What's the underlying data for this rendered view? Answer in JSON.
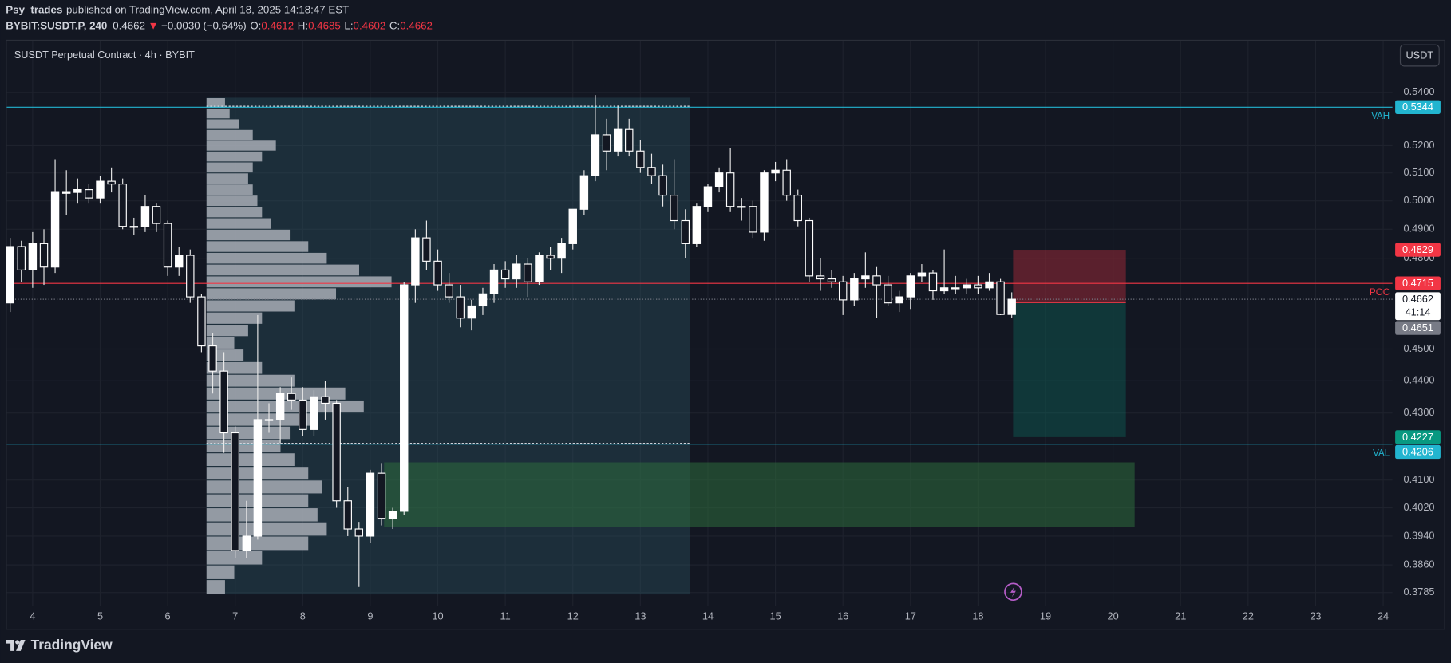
{
  "header": {
    "author": "Psy_trades",
    "published": "published on TradingView.com, April 18, 2025 14:18:47 EST",
    "symbol": "BYBIT:SUSDT.P, 240",
    "price": "0.4662",
    "arrow": "▼",
    "change": "−0.0030 (−0.64%)",
    "ohlc": [
      {
        "label": "O:",
        "value": "0.4612"
      },
      {
        "label": "H:",
        "value": "0.4685"
      },
      {
        "label": "L:",
        "value": "0.4602"
      },
      {
        "label": "C:",
        "value": "0.4662"
      }
    ],
    "pane_title": "SUSDT Perpetual Contract · 4h · BYBIT",
    "currency": "USDT",
    "footer": "TradingView"
  },
  "chart_data": {
    "type": "candlestick",
    "log_scale": true,
    "grid": true,
    "up_color": "#ffffff",
    "down_color": "#131722",
    "wick_color": "#e8e8e8",
    "xlim": [
      3.603,
      24.137
    ],
    "xticks": [
      4,
      5,
      6,
      7,
      8,
      9,
      10,
      11,
      12,
      13,
      14,
      15,
      16,
      17,
      18,
      19,
      20,
      21,
      22,
      23,
      24
    ],
    "ylim": [
      0.375,
      0.5606
    ],
    "yticks": [
      {
        "value": 0.54,
        "label": "0.5400"
      },
      {
        "value": 0.52,
        "label": "0.5200"
      },
      {
        "value": 0.51,
        "label": "0.5100"
      },
      {
        "value": 0.5,
        "label": "0.5000"
      },
      {
        "value": 0.49,
        "label": "0.4900"
      },
      {
        "value": 0.48,
        "label": "0.4800"
      },
      {
        "value": 0.45,
        "label": "0.4500"
      },
      {
        "value": 0.44,
        "label": "0.4400"
      },
      {
        "value": 0.43,
        "label": "0.4300"
      },
      {
        "value": 0.41,
        "label": "0.4100"
      },
      {
        "value": 0.402,
        "label": "0.4020"
      },
      {
        "value": 0.394,
        "label": "0.3940"
      },
      {
        "value": 0.386,
        "label": "0.3860"
      },
      0.3785
    ],
    "x": [
      3.667,
      3.833,
      4,
      4.167,
      4.333,
      4.5,
      4.667,
      4.833,
      5,
      5.167,
      5.333,
      5.5,
      5.667,
      5.833,
      6,
      6.167,
      6.333,
      6.5,
      6.667,
      6.833,
      7,
      7.167,
      7.333,
      7.5,
      7.667,
      7.833,
      8,
      8.167,
      8.333,
      8.5,
      8.667,
      8.833,
      9,
      9.167,
      9.333,
      9.5,
      9.667,
      9.833,
      10,
      10.167,
      10.333,
      10.5,
      10.667,
      10.833,
      11,
      11.167,
      11.333,
      11.5,
      11.667,
      11.833,
      12,
      12.167,
      12.333,
      12.5,
      12.667,
      12.833,
      13,
      13.167,
      13.333,
      13.5,
      13.667,
      13.833,
      14,
      14.167,
      14.333,
      14.5,
      14.667,
      14.833,
      15,
      15.167,
      15.333,
      15.5,
      15.667,
      15.833,
      16,
      16.167,
      16.333,
      16.5,
      16.667,
      16.833,
      17,
      17.167,
      17.333,
      17.5,
      17.667,
      17.833,
      18,
      18.167,
      18.333,
      18.5
    ],
    "open": [
      0.465,
      0.484,
      0.476,
      0.485,
      0.477,
      0.503,
      0.503,
      0.504,
      0.501,
      0.507,
      0.506,
      0.491,
      0.491,
      0.498,
      0.492,
      0.477,
      0.481,
      0.467,
      0.451,
      0.443,
      0.424,
      0.39,
      0.394,
      0.428,
      0.428,
      0.436,
      0.434,
      0.425,
      0.435,
      0.433,
      0.404,
      0.396,
      0.394,
      0.412,
      0.399,
      0.401,
      0.471,
      0.487,
      0.479,
      0.471,
      0.467,
      0.46,
      0.464,
      0.468,
      0.476,
      0.473,
      0.478,
      0.472,
      0.481,
      0.48,
      0.485,
      0.497,
      0.509,
      0.524,
      0.518,
      0.526,
      0.518,
      0.512,
      0.509,
      0.502,
      0.493,
      0.485,
      0.498,
      0.505,
      0.51,
      0.498,
      0.498,
      0.489,
      0.51,
      0.511,
      0.502,
      0.493,
      0.474,
      0.473,
      0.472,
      0.466,
      0.473,
      0.474,
      0.471,
      0.465,
      0.467,
      0.474,
      0.475,
      0.469,
      0.47,
      0.47,
      0.471,
      0.47,
      0.472,
      0.4612
    ],
    "high": [
      0.487,
      0.486,
      0.489,
      0.49,
      0.515,
      0.511,
      0.508,
      0.506,
      0.509,
      0.512,
      0.508,
      0.494,
      0.502,
      0.499,
      0.493,
      0.484,
      0.483,
      0.468,
      0.455,
      0.449,
      0.426,
      0.404,
      0.461,
      0.433,
      0.438,
      0.441,
      0.438,
      0.437,
      0.44,
      0.434,
      0.408,
      0.398,
      0.413,
      0.415,
      0.402,
      0.472,
      0.49,
      0.493,
      0.483,
      0.475,
      0.471,
      0.466,
      0.47,
      0.478,
      0.479,
      0.481,
      0.48,
      0.482,
      0.484,
      0.487,
      0.497,
      0.511,
      0.539,
      0.53,
      0.535,
      0.53,
      0.522,
      0.517,
      0.513,
      0.515,
      0.497,
      0.499,
      0.506,
      0.512,
      0.519,
      0.501,
      0.5,
      0.511,
      0.514,
      0.515,
      0.504,
      0.494,
      0.48,
      0.476,
      0.474,
      0.475,
      0.482,
      0.477,
      0.474,
      0.469,
      0.475,
      0.478,
      0.476,
      0.483,
      0.474,
      0.473,
      0.474,
      0.475,
      0.473,
      0.4685
    ],
    "low": [
      0.462,
      0.472,
      0.47,
      0.471,
      0.475,
      0.495,
      0.499,
      0.499,
      0.499,
      0.503,
      0.49,
      0.488,
      0.489,
      0.489,
      0.474,
      0.474,
      0.465,
      0.449,
      0.436,
      0.418,
      0.388,
      0.388,
      0.393,
      0.424,
      0.421,
      0.431,
      0.423,
      0.423,
      0.428,
      0.402,
      0.394,
      0.38,
      0.392,
      0.397,
      0.396,
      0.4,
      0.465,
      0.476,
      0.469,
      0.465,
      0.457,
      0.456,
      0.461,
      0.465,
      0.47,
      0.47,
      0.467,
      0.471,
      0.476,
      0.475,
      0.483,
      0.495,
      0.507,
      0.511,
      0.516,
      0.516,
      0.51,
      0.506,
      0.498,
      0.49,
      0.48,
      0.484,
      0.496,
      0.503,
      0.496,
      0.493,
      0.487,
      0.486,
      0.507,
      0.5,
      0.491,
      0.472,
      0.469,
      0.47,
      0.461,
      0.464,
      0.47,
      0.46,
      0.464,
      0.462,
      0.463,
      0.472,
      0.466,
      0.468,
      0.468,
      0.468,
      0.468,
      0.469,
      0.461,
      0.4602
    ],
    "close": [
      0.484,
      0.476,
      0.485,
      0.477,
      0.503,
      0.503,
      0.504,
      0.501,
      0.507,
      0.506,
      0.491,
      0.491,
      0.498,
      0.492,
      0.477,
      0.481,
      0.467,
      0.451,
      0.443,
      0.424,
      0.39,
      0.394,
      0.428,
      0.428,
      0.436,
      0.434,
      0.425,
      0.435,
      0.433,
      0.404,
      0.396,
      0.394,
      0.412,
      0.399,
      0.401,
      0.471,
      0.487,
      0.479,
      0.471,
      0.467,
      0.46,
      0.464,
      0.468,
      0.476,
      0.473,
      0.478,
      0.472,
      0.481,
      0.48,
      0.485,
      0.497,
      0.509,
      0.524,
      0.518,
      0.526,
      0.518,
      0.512,
      0.509,
      0.502,
      0.493,
      0.485,
      0.498,
      0.505,
      0.51,
      0.498,
      0.498,
      0.489,
      0.51,
      0.511,
      0.502,
      0.493,
      0.474,
      0.473,
      0.472,
      0.466,
      0.473,
      0.474,
      0.471,
      0.465,
      0.467,
      0.474,
      0.475,
      0.469,
      0.47,
      0.47,
      0.471,
      0.47,
      0.472,
      0.4612,
      0.4662
    ],
    "countdown": "41:14",
    "levels": [
      {
        "name": "VAH",
        "value": 0.5344,
        "color": "#22b5d0"
      },
      {
        "name": "POC",
        "value": 0.4715,
        "color": "#f23645"
      },
      {
        "name": "VAL",
        "value": 0.4206,
        "color": "#22b5d0"
      }
    ],
    "volume_profile": {
      "x": 6.575,
      "box_x": [
        6.575,
        13.73
      ],
      "color": "#b2b5be",
      "box_color": "#2f5a66",
      "bins": [
        0.378,
        0.382,
        0.386,
        0.39,
        0.394,
        0.398,
        0.402,
        0.406,
        0.41,
        0.414,
        0.418,
        0.422,
        0.426,
        0.43,
        0.434,
        0.438,
        0.442,
        0.446,
        0.45,
        0.454,
        0.458,
        0.462,
        0.466,
        0.47,
        0.474,
        0.478,
        0.482,
        0.486,
        0.49,
        0.494,
        0.498,
        0.502,
        0.506,
        0.51,
        0.514,
        0.518,
        0.522,
        0.526,
        0.53,
        0.534,
        0.538
      ],
      "values": [
        20,
        30,
        60,
        110,
        130,
        120,
        110,
        125,
        110,
        95,
        80,
        90,
        120,
        170,
        150,
        95,
        60,
        40,
        30,
        45,
        60,
        95,
        140,
        200,
        165,
        130,
        110,
        90,
        70,
        60,
        55,
        50,
        45,
        50,
        60,
        75,
        50,
        35,
        25,
        20
      ]
    },
    "zone": {
      "x": [
        9.205,
        20.32
      ],
      "y": [
        0.3965,
        0.4152
      ],
      "color": "#2e6b3d"
    },
    "position": {
      "x": [
        18.52,
        20.19
      ],
      "stop": 0.4829,
      "entry": 0.4651,
      "target": 0.4227,
      "stop_color": "#f23645",
      "target_color": "#089981",
      "entry_color": "#787b86"
    }
  }
}
